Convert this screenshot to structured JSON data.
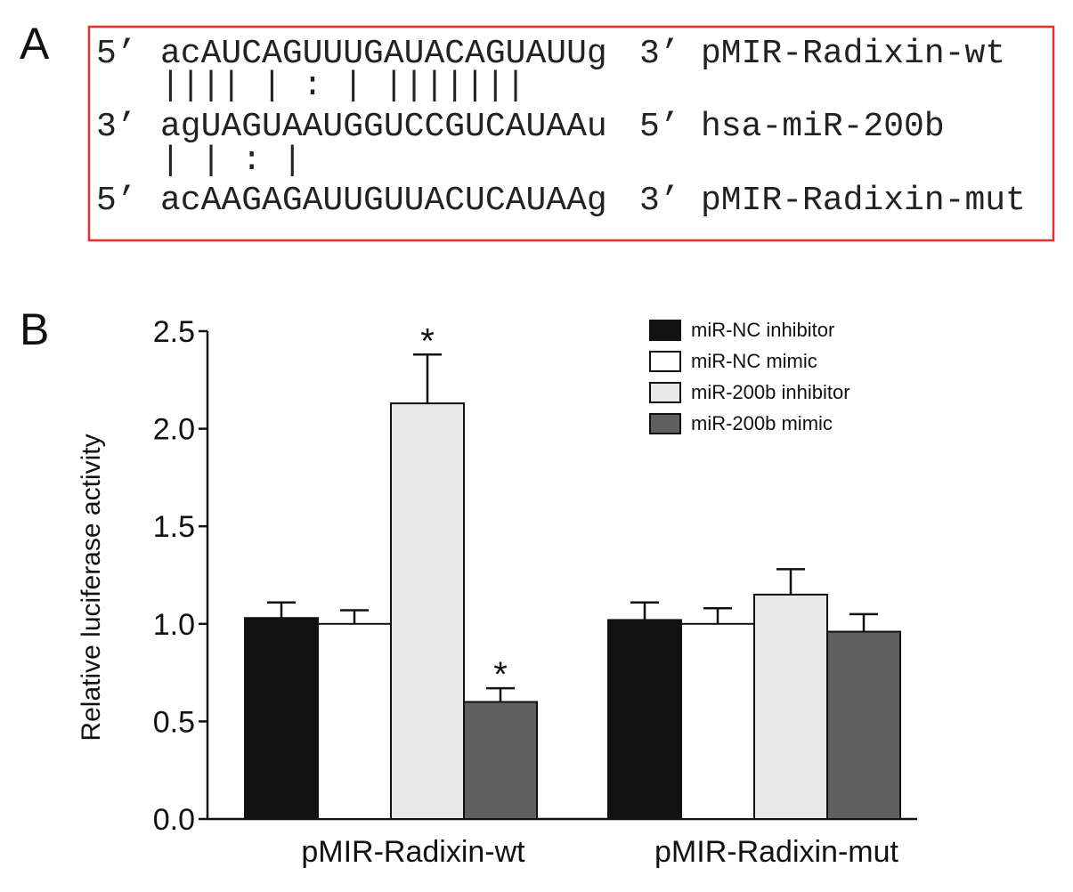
{
  "panel_a": {
    "label": "A",
    "rows": [
      {
        "left": "5’",
        "sequence": "acAUCAGUUUGAUACAGUAUUg",
        "right": "3’",
        "name": "pMIR-Radixin-wt"
      },
      {
        "left": "3’",
        "sequence": "agUAGUAAUGGUCCGUCAUAAu",
        "right": "5’",
        "name": "hsa-miR-200b"
      },
      {
        "left": "5’",
        "sequence": "acAAGAGAUUGUUACUCAUAAg",
        "right": "3’",
        "name": "pMIR-Radixin-mut"
      }
    ],
    "pairings": [
      "  |||| | : |  ||||||| ",
      "  |  |   :    |       "
    ]
  },
  "chart_data": {
    "type": "bar",
    "panel_label": "B",
    "y_label": "Relative luciferase activity",
    "categories": [
      "pMIR-Radixin-wt",
      "pMIR-Radixin-mut"
    ],
    "series": [
      {
        "name": "miR-NC inhibitor",
        "color": "#111111",
        "values": [
          1.03,
          1.02
        ],
        "errors": [
          0.08,
          0.09
        ],
        "significance": [
          null,
          null
        ]
      },
      {
        "name": "miR-NC mimic",
        "color": "#ffffff",
        "values": [
          1.0,
          1.0
        ],
        "errors": [
          0.07,
          0.08
        ],
        "significance": [
          null,
          null
        ]
      },
      {
        "name": "miR-200b inhibitor",
        "color": "#e8e8e8",
        "values": [
          2.13,
          1.15
        ],
        "errors": [
          0.25,
          0.13
        ],
        "significance": [
          "*",
          null
        ]
      },
      {
        "name": "miR-200b mimic",
        "color": "#606060",
        "values": [
          0.6,
          0.96
        ],
        "errors": [
          0.07,
          0.09
        ],
        "significance": [
          "*",
          null
        ]
      }
    ],
    "ylim": [
      0,
      2.5
    ],
    "yticks": [
      {
        "value": 0,
        "label": "0.0"
      },
      0.5,
      {
        "value": 1,
        "label": "1.0"
      },
      1.5,
      {
        "value": 2,
        "label": "2.0"
      },
      2.5
    ],
    "grid": false,
    "legend": "top-right"
  }
}
